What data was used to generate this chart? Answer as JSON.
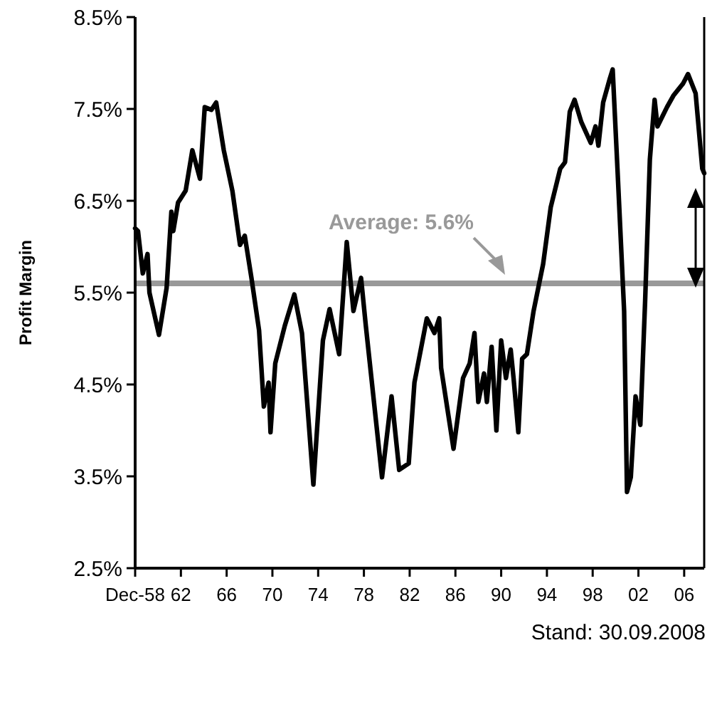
{
  "chart_data": {
    "type": "line",
    "ylabel": "Profit Margin",
    "x": [
      "1958-12",
      "1959-03",
      "1959-08",
      "1960-01",
      "1960-03",
      "1961-01",
      "1961-09",
      "1962-02",
      "1962-04",
      "1962-09",
      "1963-05",
      "1963-12",
      "1964-08",
      "1965-01",
      "1965-08",
      "1966-01",
      "1966-09",
      "1967-06",
      "1968-02",
      "1968-07",
      "1969-02",
      "1969-10",
      "1970-03",
      "1970-08",
      "1970-10",
      "1971-03",
      "1972-01",
      "1972-11",
      "1973-07",
      "1974-07",
      "1975-05",
      "1975-12",
      "1976-10",
      "1977-06",
      "1978-01",
      "1978-09",
      "1979-02",
      "1980-07",
      "1981-05",
      "1982-01",
      "1982-11",
      "1983-05",
      "1984-06",
      "1985-02",
      "1985-07",
      "1985-09",
      "1986-10",
      "1987-08",
      "1988-03",
      "1988-08",
      "1988-12",
      "1989-06",
      "1989-09",
      "1990-02",
      "1990-07",
      "1990-12",
      "1991-05",
      "1991-10",
      "1992-01",
      "1992-06",
      "1992-10",
      "1993-03",
      "1993-10",
      "1994-08",
      "1995-04",
      "1996-02",
      "1996-07",
      "1996-12",
      "1997-05",
      "1997-12",
      "1998-10",
      "1999-03",
      "1999-06",
      "1999-11",
      "2000-06",
      "2000-09",
      "2001-02",
      "2001-09",
      "2001-12",
      "2002-04",
      "2002-09",
      "2003-02",
      "2003-07",
      "2003-12",
      "2004-05",
      "2004-08",
      "2005-06",
      "2006-01",
      "2006-11",
      "2007-04",
      "2007-12",
      "2008-07",
      "2008-09"
    ],
    "series": [
      {
        "color": "#000000",
        "values": [
          6.2,
          6.17,
          5.71,
          5.92,
          5.5,
          5.04,
          5.55,
          6.38,
          6.17,
          6.48,
          6.61,
          7.05,
          6.74,
          7.52,
          7.49,
          7.57,
          7.05,
          6.61,
          6.02,
          6.12,
          5.66,
          5.09,
          4.26,
          4.52,
          3.98,
          4.73,
          5.14,
          5.48,
          5.06,
          3.41,
          4.98,
          5.32,
          4.83,
          6.05,
          5.3,
          5.66,
          5.14,
          3.49,
          4.37,
          3.57,
          3.64,
          4.52,
          5.22,
          5.06,
          5.22,
          4.68,
          3.8,
          4.57,
          4.73,
          5.06,
          4.31,
          4.62,
          4.31,
          4.91,
          4,
          4.98,
          4.57,
          4.88,
          4.57,
          3.98,
          4.78,
          4.83,
          5.3,
          5.81,
          6.43,
          6.85,
          6.92,
          7.47,
          7.6,
          7.36,
          7.13,
          7.31,
          7.1,
          7.57,
          7.83,
          7.93,
          6.85,
          5.3,
          3.33,
          3.49,
          4.37,
          4.06,
          5.4,
          6.95,
          7.6,
          7.31,
          7.52,
          7.65,
          7.78,
          7.88,
          7.67,
          6.85,
          6.8
        ]
      }
    ],
    "xlim": [
      "1958-12",
      "2008-09"
    ],
    "xticks": [
      {
        "value": "1958-12",
        "label": "Dec-58"
      },
      {
        "value": "1962-12",
        "label": "62"
      },
      {
        "value": "1966-12",
        "label": "66"
      },
      {
        "value": "1970-12",
        "label": "70"
      },
      {
        "value": "1974-12",
        "label": "74"
      },
      {
        "value": "1978-12",
        "label": "78"
      },
      {
        "value": "1982-12",
        "label": "82"
      },
      {
        "value": "1986-12",
        "label": "86"
      },
      {
        "value": "1990-12",
        "label": "90"
      },
      {
        "value": "1994-12",
        "label": "94"
      },
      {
        "value": "1998-12",
        "label": "98"
      },
      {
        "value": "2002-12",
        "label": "02"
      },
      {
        "value": "2006-12",
        "label": "06"
      }
    ],
    "ylim": [
      2.5,
      8.5
    ],
    "yticks": [
      {
        "value": 2.5,
        "label": "2.5%"
      },
      {
        "value": 3.5,
        "label": "3.5%"
      },
      {
        "value": 4.5,
        "label": "4.5%"
      },
      {
        "value": 5.5,
        "label": "5.5%"
      },
      {
        "value": 6.5,
        "label": "6.5%"
      },
      {
        "value": 7.5,
        "label": "7.5%"
      },
      {
        "value": 8.5,
        "label": "8.5%"
      }
    ],
    "ref_lines": [
      {
        "axis": "y",
        "value": 5.6,
        "label": "Average: 5.6%",
        "color": "#999999"
      }
    ],
    "annotations": [
      "Stand: 30.09.2008"
    ],
    "grid": false,
    "marker": "none",
    "line_style": "solid"
  }
}
